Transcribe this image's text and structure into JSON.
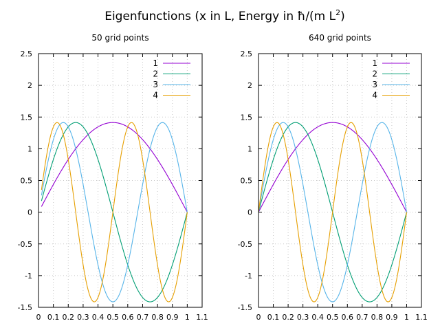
{
  "figure": {
    "title_main": "Eigenfunctions (x in L, Energy in ħ/(m L",
    "title_sup": "2",
    "title_end": ")"
  },
  "chart_data": [
    {
      "type": "line",
      "title": "50 grid points",
      "xlim": [
        0,
        1.1
      ],
      "ylim": [
        -1.5,
        2.5
      ],
      "x_ticks": [
        "0",
        "0.1",
        "0.2",
        "0.3",
        "0.4",
        "0.5",
        "0.6",
        "0.7",
        "0.8",
        "0.9",
        "1",
        "1.1"
      ],
      "y_ticks": [
        "2.5",
        "2",
        "1.5",
        "1",
        "0.5",
        "0",
        "-0.5",
        "-1",
        "-1.5"
      ],
      "grid": true,
      "legend_position": "top-right",
      "x_start": 0.02,
      "x_end": 1.0,
      "amplitude": 1.414,
      "series": [
        {
          "name": "1",
          "n": 1,
          "color": "#9400d3"
        },
        {
          "name": "2",
          "n": 2,
          "color": "#009e73"
        },
        {
          "name": "3",
          "n": 3,
          "color": "#56b4e9"
        },
        {
          "name": "4",
          "n": 4,
          "color": "#e69f00"
        }
      ]
    },
    {
      "type": "line",
      "title": "640 grid points",
      "xlim": [
        0,
        1.1
      ],
      "ylim": [
        -1.5,
        2.5
      ],
      "x_ticks": [
        "0",
        "0.1",
        "0.2",
        "0.3",
        "0.4",
        "0.5",
        "0.6",
        "0.7",
        "0.8",
        "0.9",
        "1",
        "1.1"
      ],
      "y_ticks": [
        "2.5",
        "2",
        "1.5",
        "1",
        "0.5",
        "0",
        "-0.5",
        "-1",
        "-1.5"
      ],
      "grid": true,
      "legend_position": "top-right",
      "x_start": 0.0,
      "x_end": 1.0,
      "amplitude": 1.414,
      "series": [
        {
          "name": "1",
          "n": 1,
          "color": "#9400d3"
        },
        {
          "name": "2",
          "n": 2,
          "color": "#009e73"
        },
        {
          "name": "3",
          "n": 3,
          "color": "#56b4e9"
        },
        {
          "name": "4",
          "n": 4,
          "color": "#e69f00"
        }
      ]
    }
  ]
}
